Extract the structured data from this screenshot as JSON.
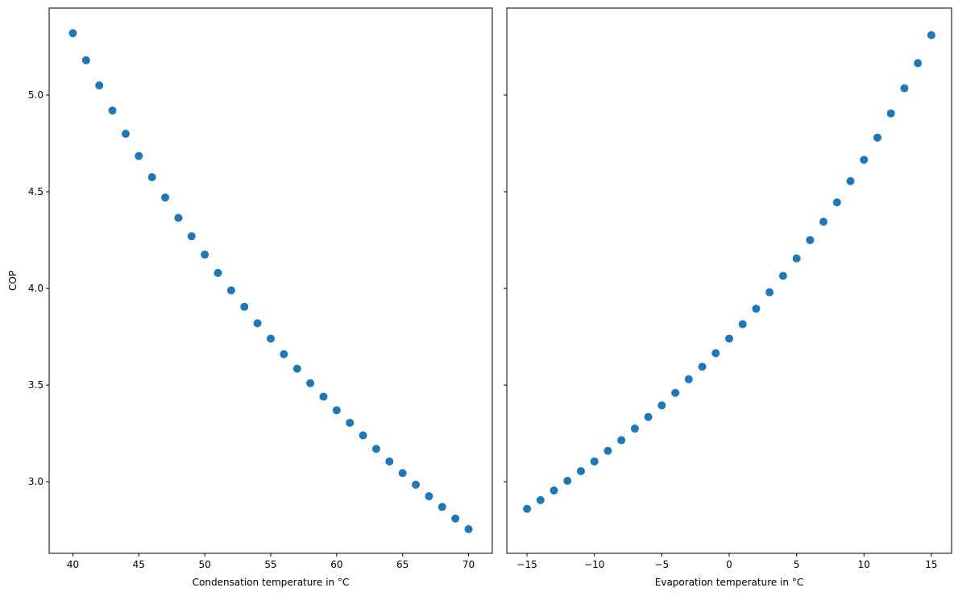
{
  "chart_data": [
    {
      "type": "scatter",
      "title": "",
      "xlabel": "Condensation temperature in °C",
      "ylabel": "COP",
      "xlim": [
        38.2,
        71.8
      ],
      "ylim": [
        2.63,
        5.45
      ],
      "xticks": [
        40,
        45,
        50,
        55,
        60,
        65,
        70
      ],
      "xtick_labels": [
        "40",
        "45",
        "50",
        "55",
        "60",
        "65",
        "70"
      ],
      "yticks": [
        3.0,
        3.5,
        4.0,
        4.5,
        5.0
      ],
      "ytick_labels": [
        "3.0",
        "3.5",
        "4.0",
        "4.5",
        "5.0"
      ],
      "marker_color": "#1f77b4",
      "x": [
        40,
        41,
        42,
        43,
        44,
        45,
        46,
        47,
        48,
        49,
        50,
        51,
        52,
        53,
        54,
        55,
        56,
        57,
        58,
        59,
        60,
        61,
        62,
        63,
        64,
        65,
        66,
        67,
        68,
        69,
        70
      ],
      "y": [
        5.32,
        5.18,
        5.05,
        4.92,
        4.8,
        4.685,
        4.575,
        4.47,
        4.365,
        4.27,
        4.175,
        4.08,
        3.99,
        3.905,
        3.82,
        3.74,
        3.66,
        3.585,
        3.51,
        3.44,
        3.37,
        3.305,
        3.24,
        3.17,
        3.105,
        3.045,
        2.985,
        2.925,
        2.87,
        2.81,
        2.755
      ],
      "grid": false,
      "legend": false
    },
    {
      "type": "scatter",
      "title": "",
      "xlabel": "Evaporation temperature in °C",
      "ylabel": "",
      "xlim": [
        -16.5,
        16.5
      ],
      "ylim": [
        2.63,
        5.45
      ],
      "xticks": [
        -15,
        -10,
        -5,
        0,
        5,
        10,
        15
      ],
      "xtick_labels": [
        "−15",
        "−10",
        "−5",
        "0",
        "5",
        "10",
        "15"
      ],
      "yticks": [
        3.0,
        3.5,
        4.0,
        4.5,
        5.0
      ],
      "ytick_labels": [
        "",
        "",
        "",
        "",
        ""
      ],
      "marker_color": "#1f77b4",
      "x": [
        -15,
        -14,
        -13,
        -12,
        -11,
        -10,
        -9,
        -8,
        -7,
        -6,
        -5,
        -4,
        -3,
        -2,
        -1,
        0,
        1,
        2,
        3,
        4,
        5,
        6,
        7,
        8,
        9,
        10,
        11,
        12,
        13,
        14,
        15
      ],
      "y": [
        2.86,
        2.905,
        2.955,
        3.005,
        3.055,
        3.105,
        3.16,
        3.215,
        3.275,
        3.335,
        3.395,
        3.46,
        3.53,
        3.595,
        3.665,
        3.74,
        3.815,
        3.895,
        3.98,
        4.065,
        4.155,
        4.25,
        4.345,
        4.445,
        4.555,
        4.665,
        4.78,
        4.905,
        5.035,
        5.165,
        5.31
      ],
      "grid": false,
      "legend": false
    }
  ]
}
